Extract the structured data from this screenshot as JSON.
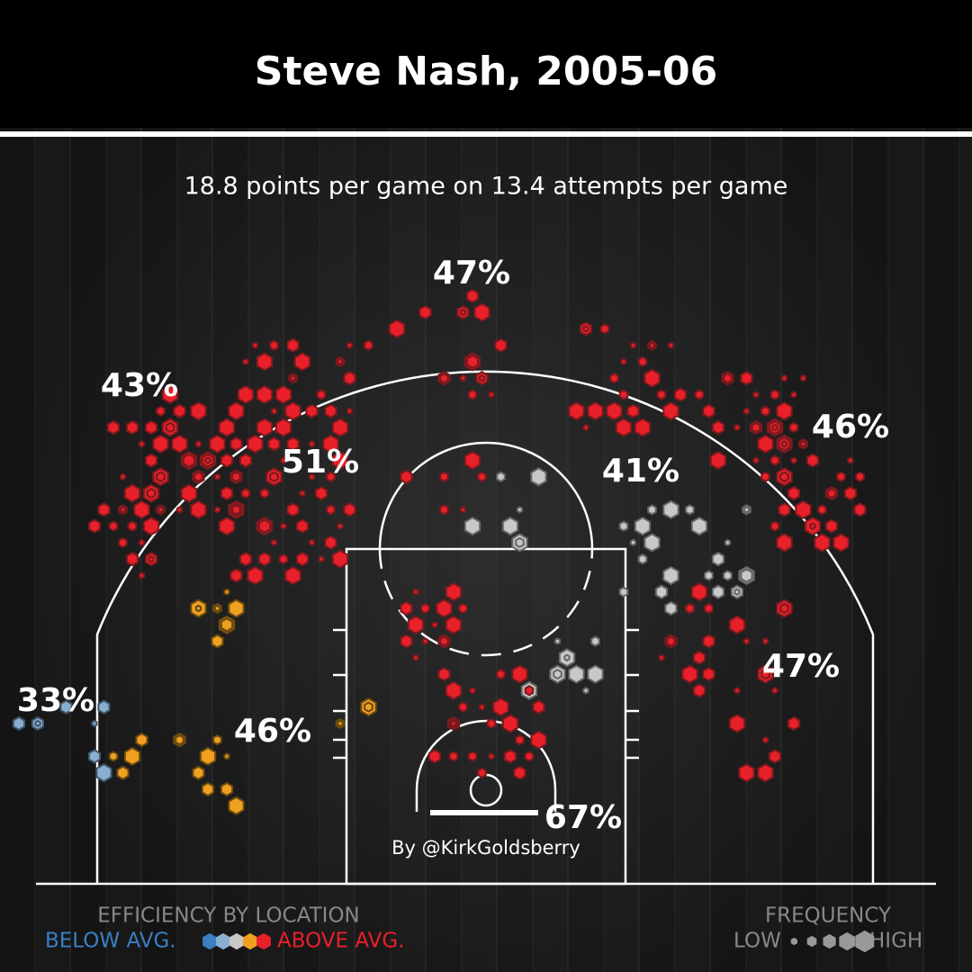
{
  "header": {
    "title": "Steve Nash, 2005-06"
  },
  "subtitle": "18.8 points per game on 13.4 attempts per game",
  "zones": [
    "47%",
    "43%",
    "46%",
    "51%",
    "41%",
    "33%",
    "46%",
    "47%",
    "67%"
  ],
  "credit": "By @KirkGoldsberry",
  "legend": {
    "efficiency": {
      "title": "EFFICIENCY BY LOCATION",
      "low": "BELOW AVG.",
      "high": "ABOVE AVG."
    },
    "frequency": {
      "title": "FREQUENCY",
      "low": "LOW",
      "high": "HIGH"
    }
  }
}
